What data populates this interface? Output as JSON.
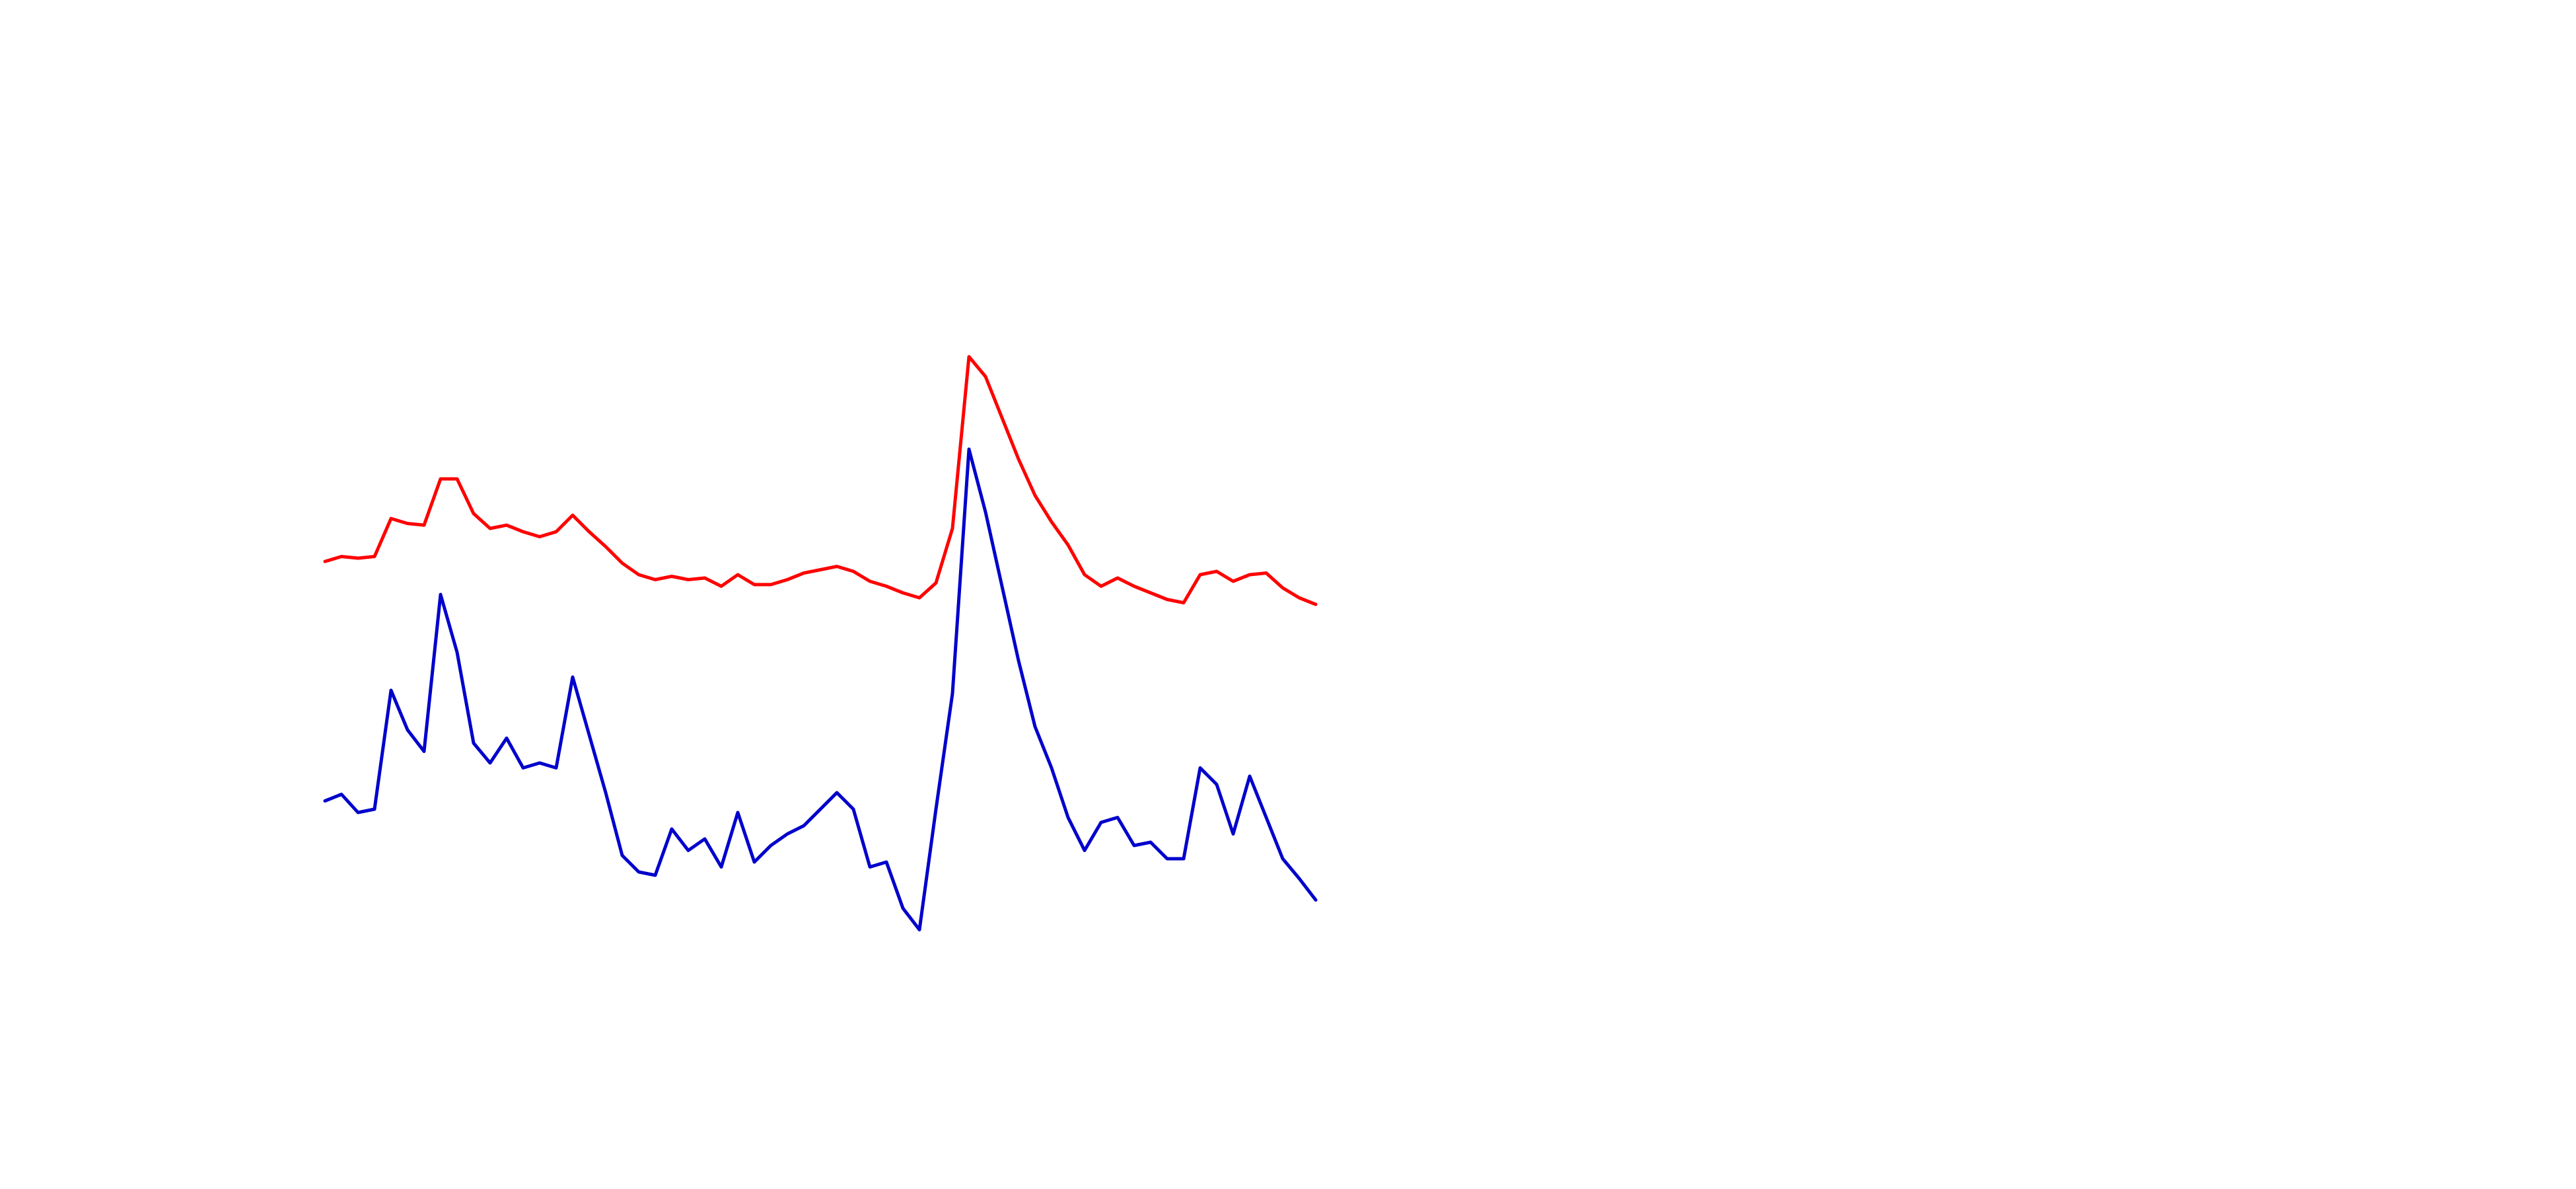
{
  "chart_data": {
    "type": "line",
    "ylim": [
      0,
      720
    ],
    "series": [
      {
        "color": "#ff0000",
        "values": [
          380,
          383,
          382,
          383,
          406,
          403,
          402,
          430,
          430,
          409,
          400,
          402,
          398,
          395,
          398,
          408,
          398,
          389,
          379,
          372,
          369,
          371,
          369,
          370,
          365,
          372,
          366,
          366,
          369,
          373,
          375,
          377,
          374,
          368,
          365,
          361,
          358,
          367,
          400,
          504,
          492,
          467,
          442,
          420,
          404,
          390,
          372,
          365,
          370,
          365,
          361,
          357,
          355,
          372,
          374,
          368,
          372,
          373,
          364,
          358,
          354
        ]
      },
      {
        "color": "#0000cc",
        "values": [
          235,
          239,
          228,
          230,
          302,
          278,
          265,
          360,
          325,
          270,
          258,
          273,
          255,
          258,
          255,
          310,
          275,
          240,
          202,
          192,
          190,
          218,
          205,
          212,
          195,
          228,
          198,
          208,
          215,
          220,
          230,
          240,
          230,
          195,
          198,
          170,
          157,
          230,
          300,
          448,
          410,
          365,
          320,
          280,
          255,
          225,
          205,
          222,
          225,
          208,
          210,
          200,
          200,
          255,
          245,
          215,
          250,
          225,
          200,
          188,
          175
        ]
      }
    ]
  }
}
